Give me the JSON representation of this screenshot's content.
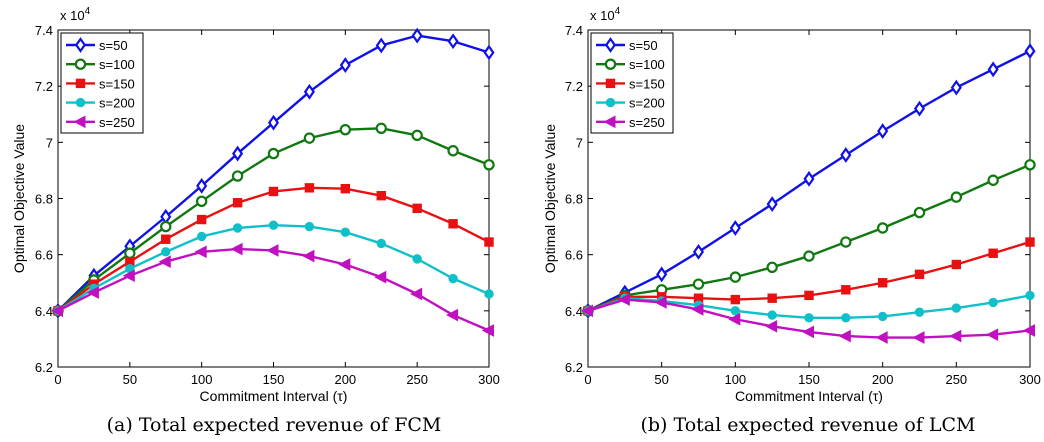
{
  "colors": {
    "s50": "#1010e8",
    "s100": "#107810",
    "s150": "#e81010",
    "s200": "#10c0c8",
    "s250": "#c010c0"
  },
  "chart_data": [
    {
      "type": "line",
      "caption": "(a) Total expected revenue of FCM",
      "xlabel": "Commitment Interval (τ)",
      "ylabel": "Optimal Objective Value",
      "y_multiplier": "x 10",
      "y_multiplier_exp": "4",
      "xlim": [
        0,
        300
      ],
      "ylim": [
        6.2,
        7.4
      ],
      "xticks": [
        "0",
        "50",
        "100",
        "150",
        "200",
        "250",
        "300"
      ],
      "yticks": [
        "6.2",
        "6.4",
        "6.6",
        "6.8",
        "7",
        "7.2",
        "7.4"
      ],
      "legend_position": "top-left",
      "grid": false,
      "x": [
        0,
        25,
        50,
        75,
        100,
        125,
        150,
        175,
        200,
        225,
        250,
        275,
        300
      ],
      "series": [
        {
          "name": "s=50",
          "marker": "diamond",
          "values": [
            6.4,
            6.525,
            6.63,
            6.735,
            6.845,
            6.96,
            7.07,
            7.18,
            7.275,
            7.345,
            7.38,
            7.36,
            7.32
          ]
        },
        {
          "name": "s=100",
          "marker": "circle",
          "values": [
            6.4,
            6.51,
            6.605,
            6.7,
            6.79,
            6.88,
            6.96,
            7.015,
            7.045,
            7.05,
            7.025,
            6.97,
            6.92
          ]
        },
        {
          "name": "s=150",
          "marker": "square",
          "values": [
            6.4,
            6.495,
            6.575,
            6.655,
            6.725,
            6.785,
            6.825,
            6.838,
            6.835,
            6.81,
            6.765,
            6.71,
            6.645
          ]
        },
        {
          "name": "s=200",
          "marker": "circle-filled",
          "values": [
            6.4,
            6.48,
            6.55,
            6.61,
            6.665,
            6.695,
            6.705,
            6.7,
            6.68,
            6.64,
            6.585,
            6.515,
            6.46
          ]
        },
        {
          "name": "s=250",
          "marker": "triangle-left",
          "values": [
            6.4,
            6.465,
            6.525,
            6.575,
            6.61,
            6.62,
            6.615,
            6.595,
            6.565,
            6.52,
            6.46,
            6.385,
            6.33
          ]
        }
      ]
    },
    {
      "type": "line",
      "caption": "(b) Total expected revenue of LCM",
      "xlabel": "Commitment Interval (τ)",
      "ylabel": "Optimal Objective Value",
      "y_multiplier": "x 10",
      "y_multiplier_exp": "4",
      "xlim": [
        0,
        300
      ],
      "ylim": [
        6.2,
        7.4
      ],
      "xticks": [
        "0",
        "50",
        "100",
        "150",
        "200",
        "250",
        "300"
      ],
      "yticks": [
        "6.2",
        "6.4",
        "6.6",
        "6.8",
        "7",
        "7.2",
        "7.4"
      ],
      "legend_position": "top-left",
      "grid": false,
      "x": [
        0,
        25,
        50,
        75,
        100,
        125,
        150,
        175,
        200,
        225,
        250,
        275,
        300
      ],
      "series": [
        {
          "name": "s=50",
          "marker": "diamond",
          "values": [
            6.4,
            6.465,
            6.53,
            6.61,
            6.695,
            6.78,
            6.87,
            6.955,
            7.04,
            7.12,
            7.195,
            7.26,
            7.325
          ]
        },
        {
          "name": "s=100",
          "marker": "circle",
          "values": [
            6.4,
            6.455,
            6.475,
            6.495,
            6.52,
            6.555,
            6.595,
            6.645,
            6.695,
            6.75,
            6.805,
            6.865,
            6.92
          ]
        },
        {
          "name": "s=150",
          "marker": "square",
          "values": [
            6.4,
            6.45,
            6.45,
            6.445,
            6.44,
            6.445,
            6.455,
            6.475,
            6.5,
            6.53,
            6.565,
            6.605,
            6.645
          ]
        },
        {
          "name": "s=200",
          "marker": "circle-filled",
          "values": [
            6.4,
            6.445,
            6.435,
            6.42,
            6.4,
            6.385,
            6.375,
            6.375,
            6.38,
            6.395,
            6.41,
            6.43,
            6.455
          ]
        },
        {
          "name": "s=250",
          "marker": "triangle-left",
          "values": [
            6.4,
            6.44,
            6.43,
            6.405,
            6.37,
            6.345,
            6.325,
            6.31,
            6.305,
            6.305,
            6.31,
            6.315,
            6.33
          ]
        }
      ]
    }
  ]
}
